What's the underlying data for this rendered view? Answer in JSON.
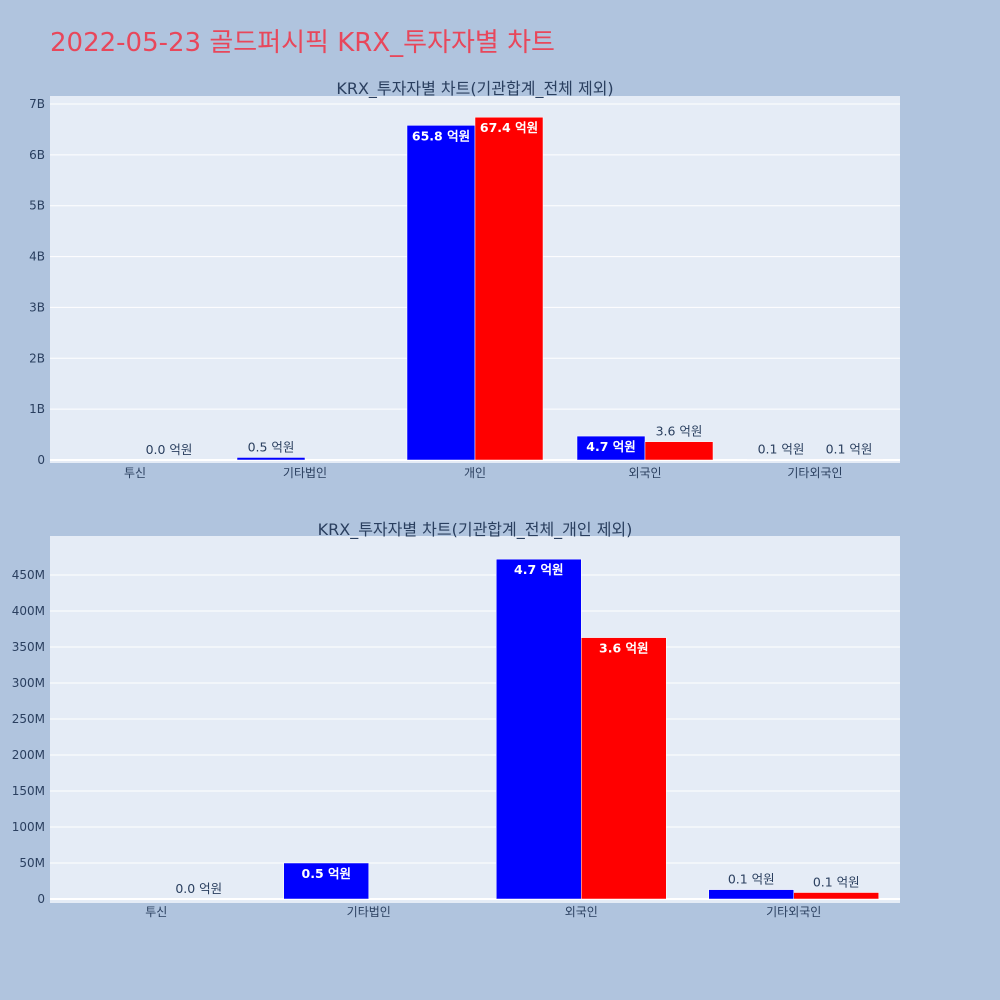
{
  "title": "2022-05-23 골드퍼시픽 KRX_투자자별 차트",
  "colors": {
    "buy": "#0000ff",
    "sell": "#ff0000",
    "plot_bg": "#e5ecf6",
    "page_bg": "#b0c4de",
    "title": "#e8475b"
  },
  "chart_data": [
    {
      "type": "bar",
      "title": "KRX_투자자별 차트(기관합계_전체 제외)",
      "categories": [
        "투신",
        "기타법인",
        "개인",
        "외국인",
        "기타외국인"
      ],
      "series": [
        {
          "color": "#0000ff",
          "values": [
            0,
            50000000,
            6580000000,
            470000000,
            10000000
          ],
          "labels": [
            "",
            "0.5 억원",
            "65.8 억원",
            "4.7 억원",
            "0.1 억원"
          ]
        },
        {
          "color": "#ff0000",
          "values": [
            0,
            0,
            6740000000,
            360000000,
            10000000
          ],
          "labels": [
            "0.0 억원",
            "",
            "67.4 억원",
            "3.6 억원",
            "0.1 억원"
          ]
        }
      ],
      "ylim": [
        0,
        7000000000
      ],
      "yticks": [
        0,
        1000000000,
        2000000000,
        3000000000,
        4000000000,
        5000000000,
        6000000000,
        7000000000
      ],
      "ytick_labels": [
        "0",
        "1B",
        "2B",
        "3B",
        "4B",
        "5B",
        "6B",
        "7B"
      ],
      "grid": true,
      "legend": "none"
    },
    {
      "type": "bar",
      "title": "KRX_투자자별 차트(기관합계_전체_개인 제외)",
      "categories": [
        "투신",
        "기타법인",
        "외국인",
        "기타외국인"
      ],
      "series": [
        {
          "color": "#0000ff",
          "values": [
            0,
            50000000,
            472000000,
            13000000
          ],
          "labels": [
            "",
            "0.5 억원",
            "4.7 억원",
            "0.1 억원"
          ]
        },
        {
          "color": "#ff0000",
          "values": [
            0,
            0,
            363000000,
            9000000
          ],
          "labels": [
            "0.0 억원",
            "",
            "3.6 억원",
            "0.1 억원"
          ]
        }
      ],
      "ylim": [
        0,
        450000000
      ],
      "yticks": [
        0,
        50000000,
        100000000,
        150000000,
        200000000,
        250000000,
        300000000,
        350000000,
        400000000,
        450000000
      ],
      "ytick_labels": [
        "0",
        "50M",
        "100M",
        "150M",
        "200M",
        "250M",
        "300M",
        "350M",
        "400M",
        "450M"
      ],
      "grid": true,
      "legend": "none"
    }
  ]
}
